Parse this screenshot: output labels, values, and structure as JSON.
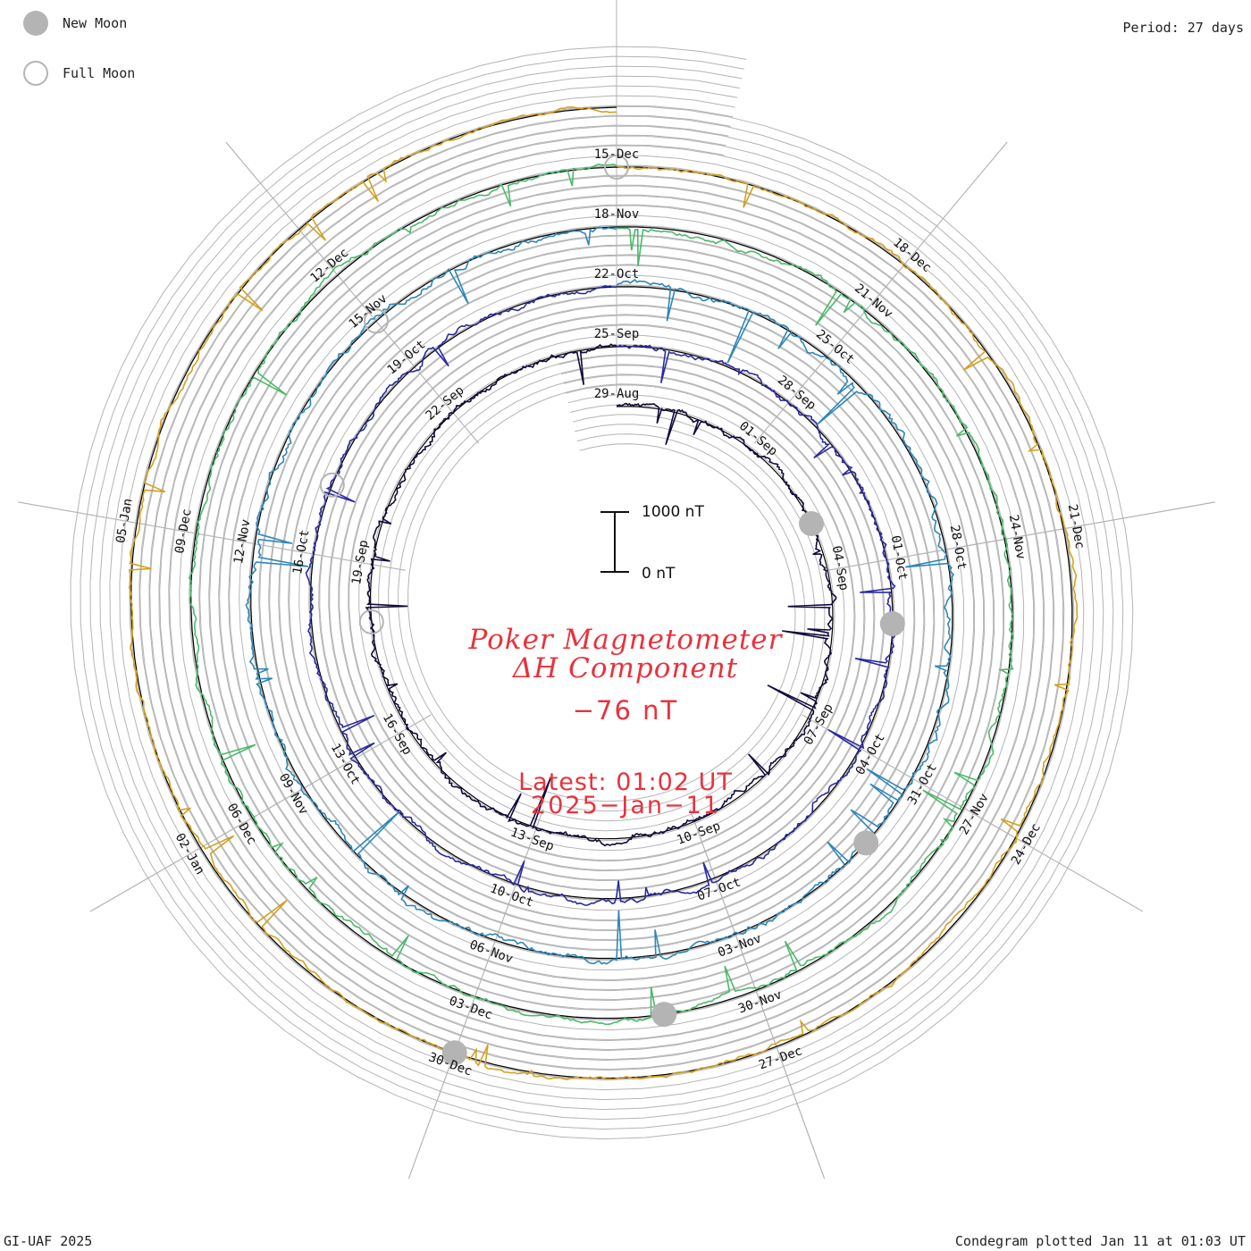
{
  "legend": {
    "new_moon": "New Moon",
    "full_moon": "Full Moon"
  },
  "period_label": "Period: 27 days",
  "credit": "GI-UAF 2025",
  "plotted_label": "Condegram plotted Jan 11 at 01:03 UT",
  "title": {
    "line1": "Poker Magnetometer",
    "line2": "ΔH Component",
    "current_value": "−76 nT",
    "latest": "Latest: 01:02 UT",
    "latest_date": "2025−Jan−11"
  },
  "colors": {
    "text_red": "#e8323c",
    "grid": "#b4b4b4",
    "moon": "#b4b4b4"
  },
  "scale_bar": {
    "top_label": "1000 nT",
    "bottom_label": "0 nT",
    "top_value": 1000,
    "bottom_value": 0
  },
  "chart_data": {
    "type": "line",
    "layout": "spiral condegram",
    "period_days": 27,
    "x_unit": "date",
    "y_unit": "nT",
    "start_date": "2024-08-29",
    "end_date": "2025-01-11",
    "grid": true,
    "series": [
      {
        "label": "29-Aug",
        "color": "#140a3c",
        "from": "2024-08-29",
        "to": "2024-09-25",
        "noise": 0.5,
        "spike": 1.5
      },
      {
        "label": "25-Sep",
        "color": "#2a2aa0",
        "from": "2024-09-25",
        "to": "2024-10-22",
        "noise": 0.5,
        "spike": 1.2
      },
      {
        "label": "22-Oct",
        "color": "#2e86b8",
        "from": "2024-10-22",
        "to": "2024-11-18",
        "noise": 0.6,
        "spike": 1.6
      },
      {
        "label": "18-Nov",
        "color": "#4cb86a",
        "from": "2024-11-18",
        "to": "2024-12-15",
        "noise": 0.5,
        "spike": 1.2
      },
      {
        "label": "15-Dec",
        "color": "#d4a020",
        "from": "2024-12-15",
        "to": "2025-01-11",
        "noise": 0.4,
        "spike": 1.0
      },
      {
        "label": "11-Jan",
        "color": "#b81414",
        "from": "2025-01-11",
        "to": "2025-01-11",
        "noise": 0.0,
        "spike": 0.0
      }
    ],
    "date_labels": [
      "29-Aug",
      "01-Sep",
      "04-Sep",
      "07-Sep",
      "10-Sep",
      "13-Sep",
      "16-Sep",
      "19-Sep",
      "22-Sep",
      "25-Sep",
      "28-Sep",
      "01-Oct",
      "04-Oct",
      "07-Oct",
      "10-Oct",
      "13-Oct",
      "16-Oct",
      "19-Oct",
      "22-Oct",
      "25-Oct",
      "28-Oct",
      "31-Oct",
      "03-Nov",
      "06-Nov",
      "09-Nov",
      "12-Nov",
      "15-Nov",
      "18-Nov",
      "21-Nov",
      "24-Nov",
      "27-Nov",
      "30-Nov",
      "03-Dec",
      "06-Dec",
      "09-Dec",
      "12-Dec",
      "15-Dec",
      "18-Dec",
      "21-Dec",
      "24-Dec",
      "27-Dec",
      "30-Dec",
      "02-Jan",
      "05-Jan"
    ],
    "new_moons": [
      "2024-09-03",
      "2024-10-02",
      "2024-11-01",
      "2024-12-01",
      "2024-12-30"
    ],
    "full_moons": [
      "2024-09-18",
      "2024-10-17",
      "2024-11-15",
      "2024-12-15"
    ]
  }
}
